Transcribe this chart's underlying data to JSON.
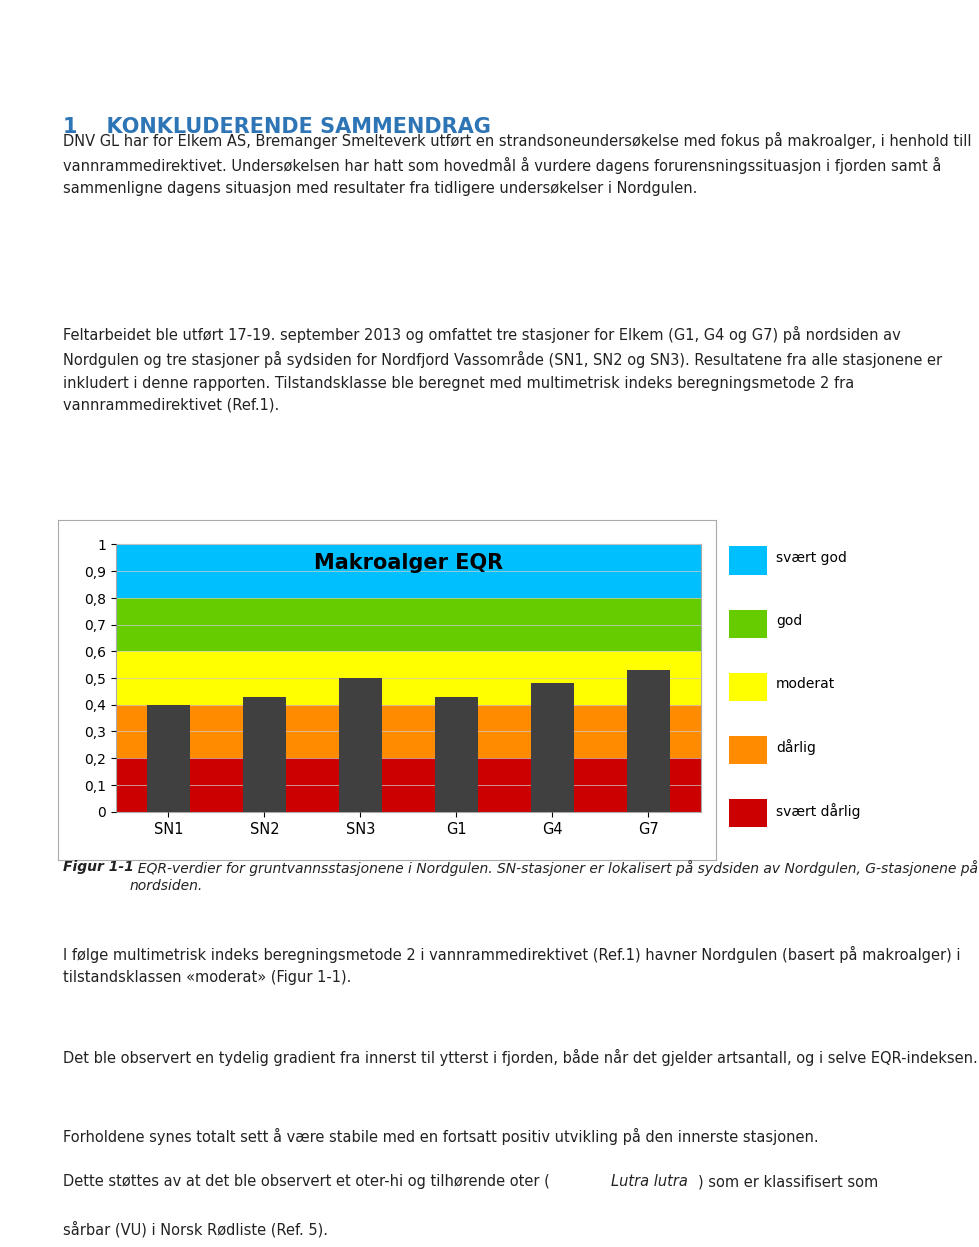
{
  "header_color_light": "#a8d8ea",
  "header_color_green": "#3aaa35",
  "header_color_dark": "#1f3864",
  "background_color": "#ffffff",
  "title_number": "1",
  "title_text": "KONKLUDERENDE SAMMENDRAG",
  "title_color": "#2e75b6",
  "para1": "DNV GL har for Elkem AS, Bremanger Smelteverk utført en strandsoneundersøkelse med fokus på makroalger, i henhold till vannrammedirektivet. Undersøkelsen har hatt som hovedmål å vurdere dagens forurensningssituasjon i fjorden samt å sammenligne dagens situasjon med resultater fra tidligere undersøkelser i Nordgulen.",
  "para2_line1": "Feltarbeidet ble utført 17-19. september 2013 og omfattet tre stasjoner for Elkem (G1, G4 og G7) på nordsiden av Nordgulen og tre stasjoner på sydsiden for Nordfjord Vassområde (SN1, SN2 og SN3). Resultatene fra alle stasjonene er inkludert i denne rapporten. Tilstandsklasse ble beregnet med multimetrisk indeks beregningsmetode 2 fra vannrammedirektivet (Ref.1).",
  "chart_title": "Makroalger EQR",
  "categories": [
    "SN1",
    "SN2",
    "SN3",
    "G1",
    "G4",
    "G7"
  ],
  "values": [
    0.4,
    0.43,
    0.5,
    0.43,
    0.48,
    0.53
  ],
  "bar_color": "#404040",
  "background_bands": [
    {
      "ymin": 0.0,
      "ymax": 0.2,
      "color": "#cc0000",
      "label": "svært dårlig"
    },
    {
      "ymin": 0.2,
      "ymax": 0.4,
      "color": "#ff8c00",
      "label": "dårlig"
    },
    {
      "ymin": 0.4,
      "ymax": 0.6,
      "color": "#ffff00",
      "label": "moderat"
    },
    {
      "ymin": 0.6,
      "ymax": 0.8,
      "color": "#66cc00",
      "label": "god"
    },
    {
      "ymin": 0.8,
      "ymax": 1.0,
      "color": "#00bfff",
      "label": "svært god"
    }
  ],
  "ylim": [
    0,
    1.0
  ],
  "yticks": [
    0,
    0.1,
    0.2,
    0.3,
    0.4,
    0.5,
    0.6,
    0.7,
    0.8,
    0.9,
    1
  ],
  "ytick_labels": [
    "0",
    "0,1",
    "0,2",
    "0,3",
    "0,4",
    "0,5",
    "0,6",
    "0,7",
    "0,8",
    "0,9",
    "1"
  ],
  "caption_bold": "Figur 1-1",
  "caption_italic": "  EQR-verdier for gruntvannsstasjonene i Nordgulen. SN-stasjoner er lokalisert på sydsiden av Nordgulen, G-stasjonene på nordsiden.",
  "bottom_para1": "I følge multimetrisk indeks beregningsmetode 2 i vannrammedirektivet (Ref.1) havner Nordgulen (basert på makroalger) i tilstandsklassen «moderat» (Figur 1-1).",
  "bottom_para2": "Det ble observert en tydelig gradient fra innerst til ytterst i fjorden, både når det gjelder artsantall, og i selve EQR-indeksen.",
  "bottom_para3_pre": "Forholdene synes totalt sett å være stabile med en fortsatt positiv utvikling på den innerste stasjonen. Dette støttes av at det ble observert et oter-hi og tilhørende oter (",
  "bottom_para3_italic": "Lutra lutra",
  "bottom_para3_post": ") som er klassifisert som sårbar (VU) i Norsk Rødliste (Ref. 5).",
  "text_color": "#222222",
  "font_size_body": 10.5,
  "font_size_title": 15,
  "chart_border_color": "#aaaaaa"
}
